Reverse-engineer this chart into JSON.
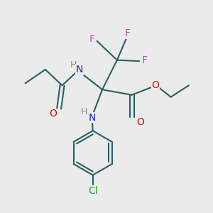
{
  "bg_color": "#ebebeb",
  "bond_color": "#2a6060",
  "N_color": "#2020bb",
  "O_color": "#cc1111",
  "F_color": "#cc44cc",
  "Cl_color": "#22aa22",
  "H_color": "#888888",
  "line_width": 1.5,
  "font_size": 10,
  "figsize": [
    3.0,
    3.0
  ],
  "dpi": 100,
  "xlim": [
    0,
    10
  ],
  "ylim": [
    0,
    10
  ]
}
